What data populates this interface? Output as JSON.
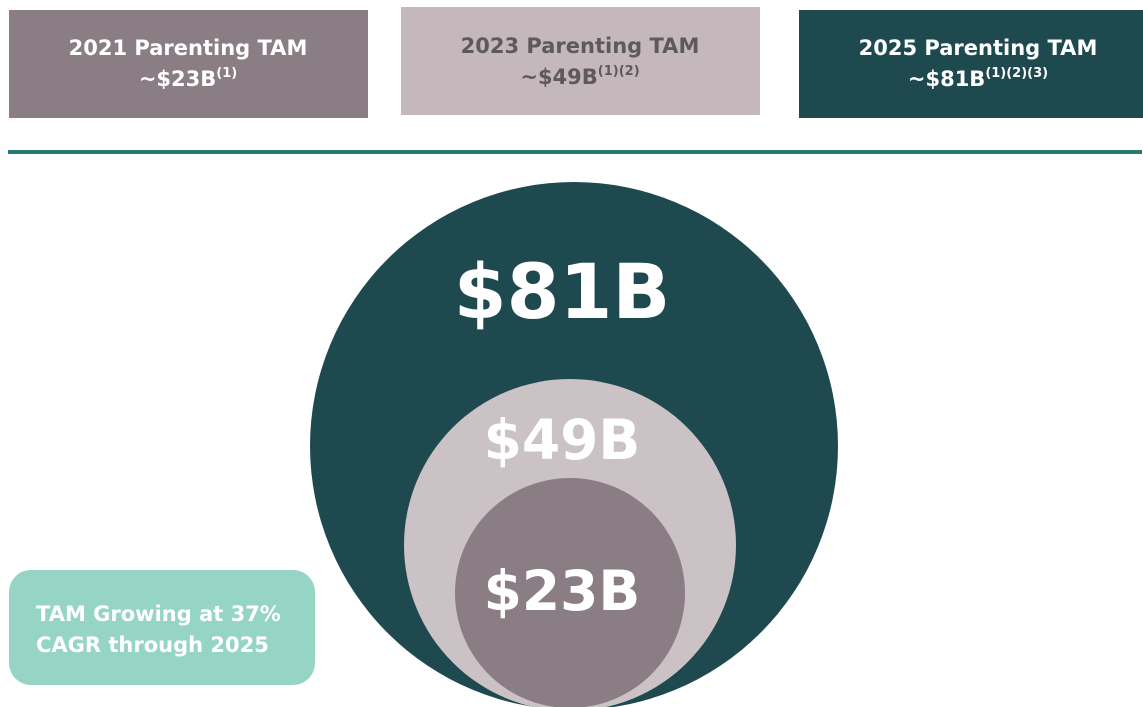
{
  "boxes": [
    {
      "title": "2021 Parenting TAM",
      "value": "~$23B",
      "note": "(1)"
    },
    {
      "title": "2023 Parenting TAM",
      "value": "~$49B",
      "note": "(1)(2)"
    },
    {
      "title": "2025 Parenting TAM",
      "value": "~$81B",
      "note": "(1)(2)(3)"
    }
  ],
  "circles": [
    {
      "label": "$81B"
    },
    {
      "label": "$49B"
    },
    {
      "label": "$23B"
    }
  ],
  "callout": {
    "lines": [
      "TAM Growing at 37%",
      "CAGR through 2025"
    ]
  }
}
